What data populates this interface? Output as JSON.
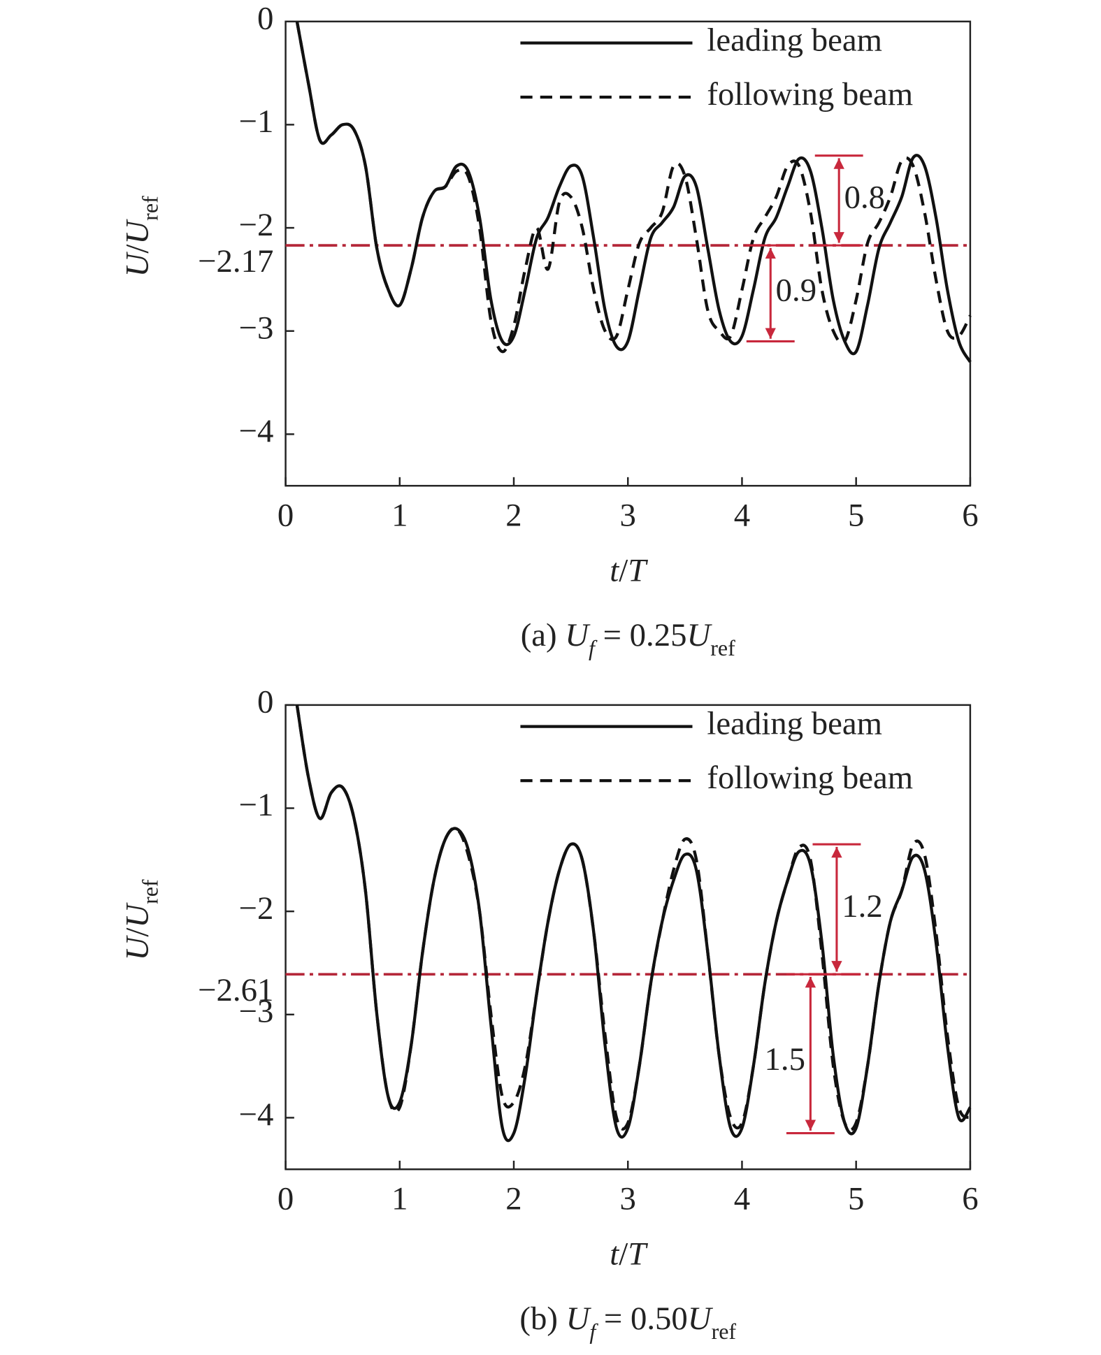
{
  "chart_data": [
    {
      "type": "line",
      "xlabel": [
        {
          "text": "t",
          "style": "italic"
        },
        {
          "text": "/"
        },
        {
          "text": "T",
          "style": "italic"
        }
      ],
      "ylabel": [
        {
          "text": "U",
          "style": "italic"
        },
        {
          "text": "/"
        },
        {
          "text": "U",
          "style": "italic"
        },
        {
          "text": "ref",
          "style": "sub"
        }
      ],
      "caption": [
        {
          "text": "(a) "
        },
        {
          "text": "U",
          "style": "italic"
        },
        {
          "text": "f",
          "style": "sub-italic"
        },
        {
          "text": " = 0.25"
        },
        {
          "text": "U",
          "style": "italic"
        },
        {
          "text": "ref",
          "style": "sub"
        }
      ],
      "xlim": [
        0,
        6
      ],
      "ylim": [
        -4.5,
        0
      ],
      "xticks": [
        0,
        1,
        2,
        3,
        4,
        5,
        6
      ],
      "yticks": [
        0,
        {
          "value": -1,
          "label": "−1"
        },
        {
          "value": -2,
          "label": "−2"
        },
        {
          "value": -3,
          "label": "−3"
        },
        {
          "value": -4,
          "label": "−4"
        }
      ],
      "legend": "upper right",
      "x": [
        0.1,
        0.2,
        0.3,
        0.4,
        0.5,
        0.6,
        0.7,
        0.8,
        0.9,
        1.0,
        1.1,
        1.2,
        1.3,
        1.4,
        1.5,
        1.6,
        1.7,
        1.8,
        1.9,
        2.0,
        2.1,
        2.2,
        2.3,
        2.4,
        2.5,
        2.6,
        2.7,
        2.8,
        2.9,
        3.0,
        3.1,
        3.2,
        3.3,
        3.4,
        3.5,
        3.6,
        3.7,
        3.8,
        3.9,
        4.0,
        4.1,
        4.2,
        4.3,
        4.4,
        4.5,
        4.6,
        4.7,
        4.8,
        4.9,
        5.0,
        5.1,
        5.2,
        5.3,
        5.4,
        5.5,
        5.6,
        5.7,
        5.8,
        5.9,
        6.0
      ],
      "series": [
        {
          "name": "leading beam",
          "color": "#111111",
          "dash": "solid",
          "values": [
            0,
            -0.6,
            -1.15,
            -1.1,
            -1.0,
            -1.05,
            -1.4,
            -2.2,
            -2.6,
            -2.75,
            -2.4,
            -1.9,
            -1.65,
            -1.6,
            -1.4,
            -1.45,
            -1.9,
            -2.7,
            -3.1,
            -3.05,
            -2.6,
            -2.1,
            -1.9,
            -1.6,
            -1.4,
            -1.5,
            -2.1,
            -2.8,
            -3.15,
            -3.1,
            -2.6,
            -2.1,
            -1.95,
            -1.8,
            -1.5,
            -1.6,
            -2.2,
            -2.8,
            -3.1,
            -3.05,
            -2.6,
            -2.1,
            -1.9,
            -1.6,
            -1.33,
            -1.45,
            -2.0,
            -2.7,
            -3.1,
            -3.2,
            -2.75,
            -2.2,
            -1.95,
            -1.7,
            -1.32,
            -1.4,
            -1.9,
            -2.6,
            -3.1,
            -3.3
          ]
        },
        {
          "name": "following beam",
          "color": "#111111",
          "dash": "dashed",
          "values": [
            0,
            -0.6,
            -1.15,
            -1.1,
            -1.0,
            -1.05,
            -1.4,
            -2.2,
            -2.6,
            -2.75,
            -2.4,
            -1.9,
            -1.65,
            -1.6,
            -1.45,
            -1.5,
            -2.0,
            -2.9,
            -3.2,
            -2.95,
            -2.4,
            -2.0,
            -2.4,
            -1.75,
            -1.7,
            -2.0,
            -2.6,
            -3.0,
            -3.05,
            -2.6,
            -2.15,
            -2.0,
            -1.85,
            -1.4,
            -1.5,
            -2.1,
            -2.8,
            -3.0,
            -3.05,
            -2.6,
            -2.1,
            -1.9,
            -1.7,
            -1.4,
            -1.4,
            -1.85,
            -2.6,
            -3.0,
            -3.1,
            -2.7,
            -2.15,
            -1.95,
            -1.7,
            -1.35,
            -1.4,
            -1.85,
            -2.5,
            -3.0,
            -3.05,
            -2.85
          ]
        }
      ],
      "reference_line": {
        "value": -2.17,
        "label": "−2.17",
        "color": "#b5283a",
        "label_color": "#222222"
      },
      "arrows": [
        {
          "label": "0.8",
          "x": 4.85,
          "y1": -1.3,
          "y2": -2.17,
          "label_side": "right",
          "color": "#c8283c"
        },
        {
          "label": "0.9",
          "x": 4.25,
          "y1": -2.17,
          "y2": -3.1,
          "label_side": "right",
          "color": "#c8283c"
        }
      ]
    },
    {
      "type": "line",
      "xlabel": [
        {
          "text": "t",
          "style": "italic"
        },
        {
          "text": "/"
        },
        {
          "text": "T",
          "style": "italic"
        }
      ],
      "ylabel": [
        {
          "text": "U",
          "style": "italic"
        },
        {
          "text": "/"
        },
        {
          "text": "U",
          "style": "italic"
        },
        {
          "text": "ref",
          "style": "sub"
        }
      ],
      "caption": [
        {
          "text": "(b) "
        },
        {
          "text": "U",
          "style": "italic"
        },
        {
          "text": "f",
          "style": "sub-italic"
        },
        {
          "text": " = 0.50"
        },
        {
          "text": "U",
          "style": "italic"
        },
        {
          "text": "ref",
          "style": "sub"
        }
      ],
      "xlim": [
        0,
        6
      ],
      "ylim": [
        -4.5,
        0
      ],
      "xticks": [
        0,
        1,
        2,
        3,
        4,
        5,
        6
      ],
      "yticks": [
        0,
        {
          "value": -1,
          "label": "−1"
        },
        {
          "value": -2,
          "label": "−2"
        },
        {
          "value": -3,
          "label": "−3"
        },
        {
          "value": -4,
          "label": "−4"
        }
      ],
      "legend": "upper right",
      "x": [
        0.1,
        0.2,
        0.3,
        0.4,
        0.5,
        0.6,
        0.7,
        0.8,
        0.9,
        1.0,
        1.1,
        1.2,
        1.3,
        1.4,
        1.5,
        1.6,
        1.7,
        1.8,
        1.9,
        2.0,
        2.1,
        2.2,
        2.3,
        2.4,
        2.5,
        2.6,
        2.7,
        2.8,
        2.9,
        3.0,
        3.1,
        3.2,
        3.3,
        3.4,
        3.5,
        3.6,
        3.7,
        3.8,
        3.9,
        4.0,
        4.1,
        4.2,
        4.3,
        4.4,
        4.5,
        4.6,
        4.7,
        4.8,
        4.9,
        5.0,
        5.1,
        5.2,
        5.3,
        5.4,
        5.5,
        5.6,
        5.7,
        5.8,
        5.9,
        6.0
      ],
      "series": [
        {
          "name": "leading beam",
          "color": "#111111",
          "dash": "solid",
          "values": [
            0,
            -0.7,
            -1.1,
            -0.85,
            -0.8,
            -1.1,
            -1.8,
            -3.0,
            -3.8,
            -3.85,
            -3.3,
            -2.4,
            -1.7,
            -1.3,
            -1.2,
            -1.4,
            -2.0,
            -3.1,
            -4.1,
            -4.15,
            -3.6,
            -2.8,
            -2.1,
            -1.6,
            -1.35,
            -1.5,
            -2.2,
            -3.3,
            -4.1,
            -4.1,
            -3.5,
            -2.7,
            -2.1,
            -1.7,
            -1.45,
            -1.6,
            -2.4,
            -3.4,
            -4.1,
            -4.1,
            -3.5,
            -2.7,
            -2.1,
            -1.7,
            -1.42,
            -1.55,
            -2.3,
            -3.4,
            -4.05,
            -4.1,
            -3.5,
            -2.7,
            -2.1,
            -1.8,
            -1.47,
            -1.6,
            -2.3,
            -3.3,
            -4.0,
            -3.9
          ]
        },
        {
          "name": "following beam",
          "color": "#111111",
          "dash": "dashed",
          "values": [
            0,
            -0.7,
            -1.1,
            -0.85,
            -0.8,
            -1.1,
            -1.8,
            -3.0,
            -3.8,
            -3.9,
            -3.3,
            -2.4,
            -1.7,
            -1.3,
            -1.2,
            -1.45,
            -2.0,
            -3.0,
            -3.8,
            -3.85,
            -3.5,
            -2.8,
            -2.1,
            -1.6,
            -1.35,
            -1.5,
            -2.2,
            -3.2,
            -4.0,
            -4.05,
            -3.5,
            -2.7,
            -2.1,
            -1.6,
            -1.3,
            -1.5,
            -2.4,
            -3.4,
            -4.0,
            -4.05,
            -3.5,
            -2.7,
            -2.1,
            -1.7,
            -1.38,
            -1.5,
            -2.4,
            -3.5,
            -4.05,
            -4.05,
            -3.5,
            -2.7,
            -2.1,
            -1.8,
            -1.35,
            -1.45,
            -2.2,
            -3.2,
            -3.9,
            -4.0
          ]
        }
      ],
      "reference_line": {
        "value": -2.61,
        "label": "−2.61",
        "color": "#b5283a",
        "label_color": "#b5283a"
      },
      "arrows": [
        {
          "label": "1.2",
          "x": 4.83,
          "y1": -1.35,
          "y2": -2.61,
          "label_side": "right",
          "color": "#c8283c"
        },
        {
          "label": "1.5",
          "x": 4.6,
          "y1": -2.61,
          "y2": -4.15,
          "label_side": "left",
          "color": "#c8283c"
        }
      ]
    }
  ]
}
